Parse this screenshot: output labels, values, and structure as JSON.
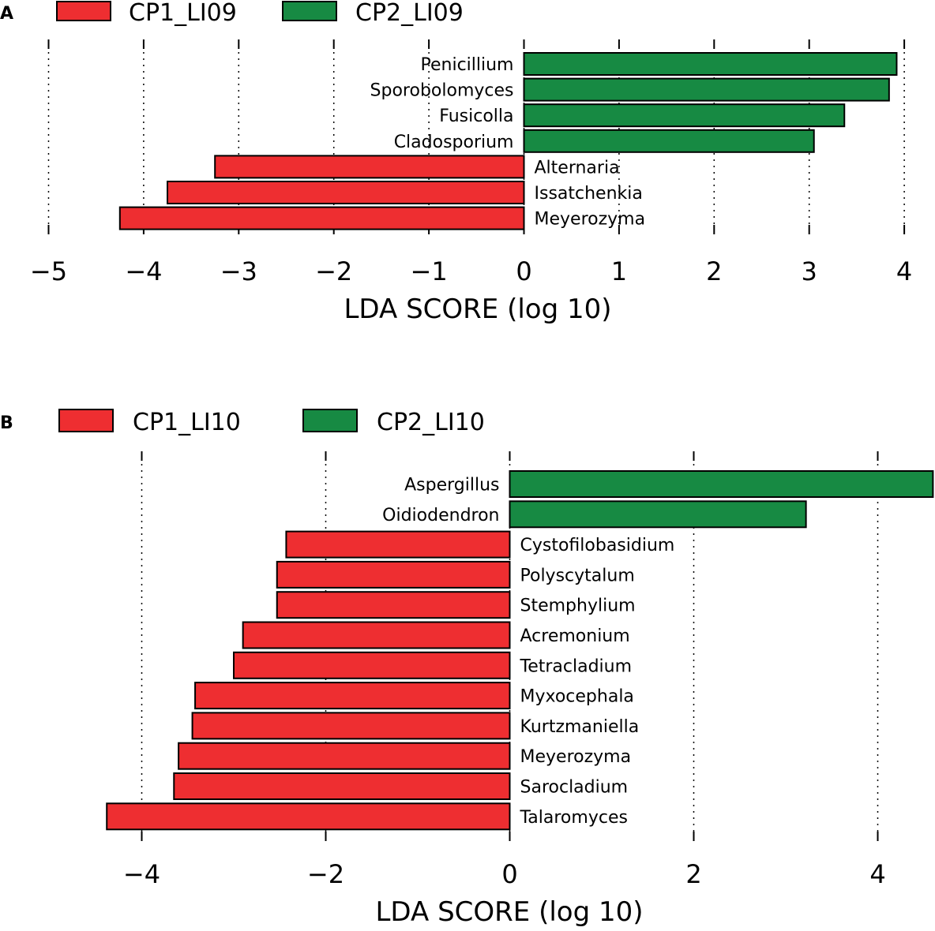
{
  "chart_data": [
    {
      "panel": "A",
      "type": "bar",
      "orientation": "horizontal",
      "legend": [
        {
          "name": "CP1_LI09",
          "color": "#ee2e31"
        },
        {
          "name": "CP2_LI09",
          "color": "#178a43"
        }
      ],
      "bars": [
        {
          "label": "Penicillium",
          "value": 3.92,
          "group": "CP2_LI09"
        },
        {
          "label": "Sporobolomyces",
          "value": 3.84,
          "group": "CP2_LI09"
        },
        {
          "label": "Fusicolla",
          "value": 3.37,
          "group": "CP2_LI09"
        },
        {
          "label": "Cladosporium",
          "value": 3.05,
          "group": "CP2_LI09"
        },
        {
          "label": "Alternaria",
          "value": -3.25,
          "group": "CP1_LI09"
        },
        {
          "label": "Issatchenkia",
          "value": -3.75,
          "group": "CP1_LI09"
        },
        {
          "label": "Meyerozyma",
          "value": -4.25,
          "group": "CP1_LI09"
        }
      ],
      "xlim": [
        -5,
        4
      ],
      "ticks": [
        -5,
        -4,
        -3,
        -2,
        -1,
        0,
        1,
        2,
        3,
        4
      ],
      "tick_labels": [
        "−5",
        "−4",
        "−3",
        "−2",
        "−1",
        "0",
        "1",
        "2",
        "3",
        "4"
      ],
      "xlabel": "LDA SCORE (log 10)",
      "grid": "vertical dotted"
    },
    {
      "panel": "B",
      "type": "bar",
      "orientation": "horizontal",
      "legend": [
        {
          "name": "CP1_LI10",
          "color": "#ee2e31"
        },
        {
          "name": "CP2_LI10",
          "color": "#178a43"
        }
      ],
      "bars": [
        {
          "label": "Aspergillus",
          "value": 4.6,
          "group": "CP2_LI10"
        },
        {
          "label": "Oidiodendron",
          "value": 3.22,
          "group": "CP2_LI10"
        },
        {
          "label": "Cystofilobasidium",
          "value": -2.43,
          "group": "CP1_LI10"
        },
        {
          "label": "Polyscytalum",
          "value": -2.53,
          "group": "CP1_LI10"
        },
        {
          "label": "Stemphylium",
          "value": -2.53,
          "group": "CP1_LI10"
        },
        {
          "label": "Acremonium",
          "value": -2.9,
          "group": "CP1_LI10"
        },
        {
          "label": "Tetracladium",
          "value": -3.0,
          "group": "CP1_LI10"
        },
        {
          "label": "Myxocephala",
          "value": -3.42,
          "group": "CP1_LI10"
        },
        {
          "label": "Kurtzmaniella",
          "value": -3.45,
          "group": "CP1_LI10"
        },
        {
          "label": "Meyerozyma",
          "value": -3.6,
          "group": "CP1_LI10"
        },
        {
          "label": "Sarocladium",
          "value": -3.65,
          "group": "CP1_LI10"
        },
        {
          "label": "Talaromyces",
          "value": -4.38,
          "group": "CP1_LI10"
        }
      ],
      "xlim": [
        -4.4,
        4.6
      ],
      "ticks": [
        -4,
        -2,
        0,
        2,
        4
      ],
      "tick_labels": [
        "−4",
        "−2",
        "0",
        "2",
        "4"
      ],
      "xlabel": "LDA SCORE (log 10)",
      "grid": "vertical dotted"
    }
  ]
}
